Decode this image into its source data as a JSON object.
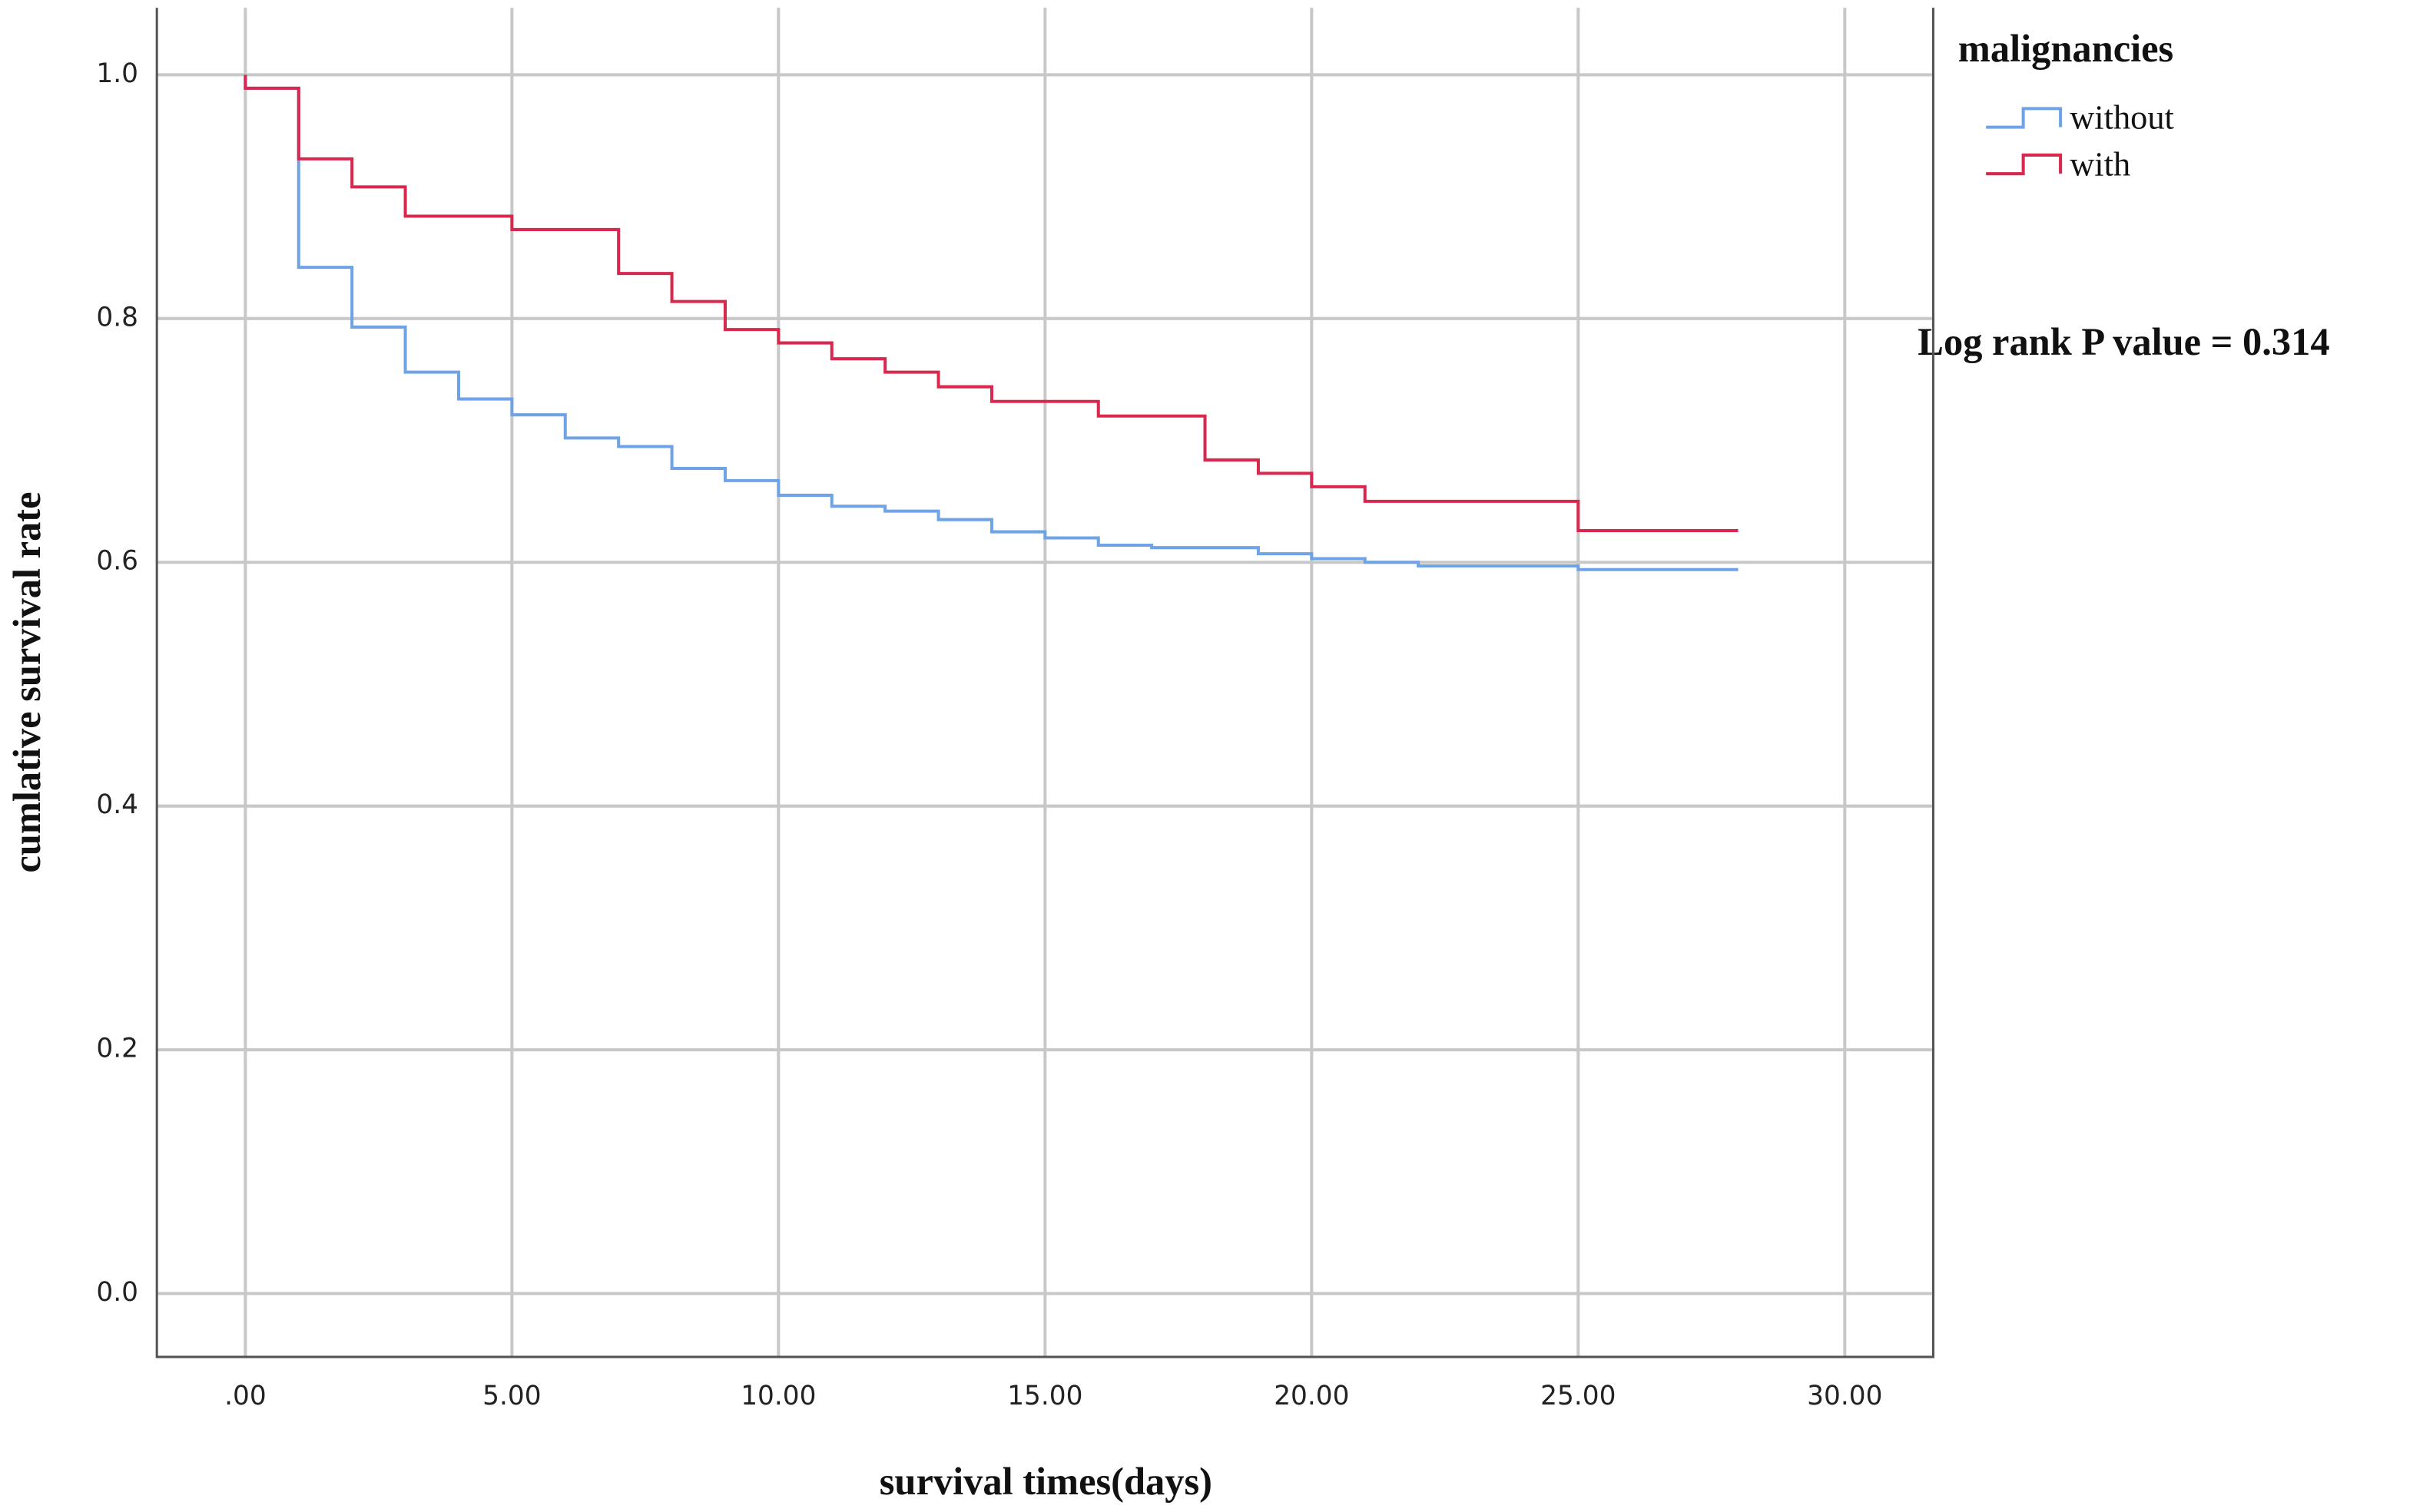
{
  "chart_data": {
    "type": "step",
    "x_label": "survival times(days)",
    "y_label": "cumlative survival rate",
    "legend_title": "malignancies",
    "annotation": "Log rank P value = 0.314",
    "grid": true,
    "legend": "upper right",
    "xlim": [
      -1.66,
      31.66
    ],
    "ylim": [
      -0.052,
      1.055
    ],
    "xticks": [
      {
        "value": 0,
        "label": ".00"
      },
      {
        "value": 5,
        "label": "5.00"
      },
      {
        "value": 10,
        "label": "10.00"
      },
      {
        "value": 15,
        "label": "15.00"
      },
      {
        "value": 20,
        "label": "20.00"
      },
      {
        "value": 25,
        "label": "25.00"
      },
      {
        "value": 30,
        "label": "30.00"
      }
    ],
    "yticks": [
      {
        "value": 0,
        "label": "0.0"
      },
      0.2,
      0.4,
      0.6,
      0.8,
      {
        "value": 1,
        "label": "1.0"
      }
    ],
    "series": [
      {
        "name": "without",
        "color": "#6fa3e6",
        "x": [
          0,
          0,
          1,
          2,
          3,
          4,
          5,
          6,
          7,
          8,
          9,
          10,
          11,
          12,
          13,
          14,
          15,
          16,
          17,
          19,
          20,
          21,
          22,
          25,
          28
        ],
        "values": [
          1.0,
          0.989,
          0.842,
          0.793,
          0.756,
          0.734,
          0.721,
          0.702,
          0.695,
          0.677,
          0.667,
          0.655,
          0.646,
          0.642,
          0.635,
          0.625,
          0.62,
          0.614,
          0.612,
          0.607,
          0.603,
          0.6,
          0.597,
          0.594,
          0.594
        ]
      },
      {
        "name": "with",
        "color": "#d9284e",
        "x": [
          0,
          0,
          1,
          2,
          3,
          5,
          7,
          8,
          9,
          10,
          11,
          12,
          13,
          14,
          16,
          18,
          19,
          20,
          21,
          25,
          28
        ],
        "values": [
          1.0,
          0.989,
          0.931,
          0.908,
          0.884,
          0.873,
          0.837,
          0.814,
          0.791,
          0.78,
          0.767,
          0.756,
          0.744,
          0.732,
          0.72,
          0.684,
          0.673,
          0.662,
          0.65,
          0.626,
          0.626
        ]
      }
    ]
  }
}
